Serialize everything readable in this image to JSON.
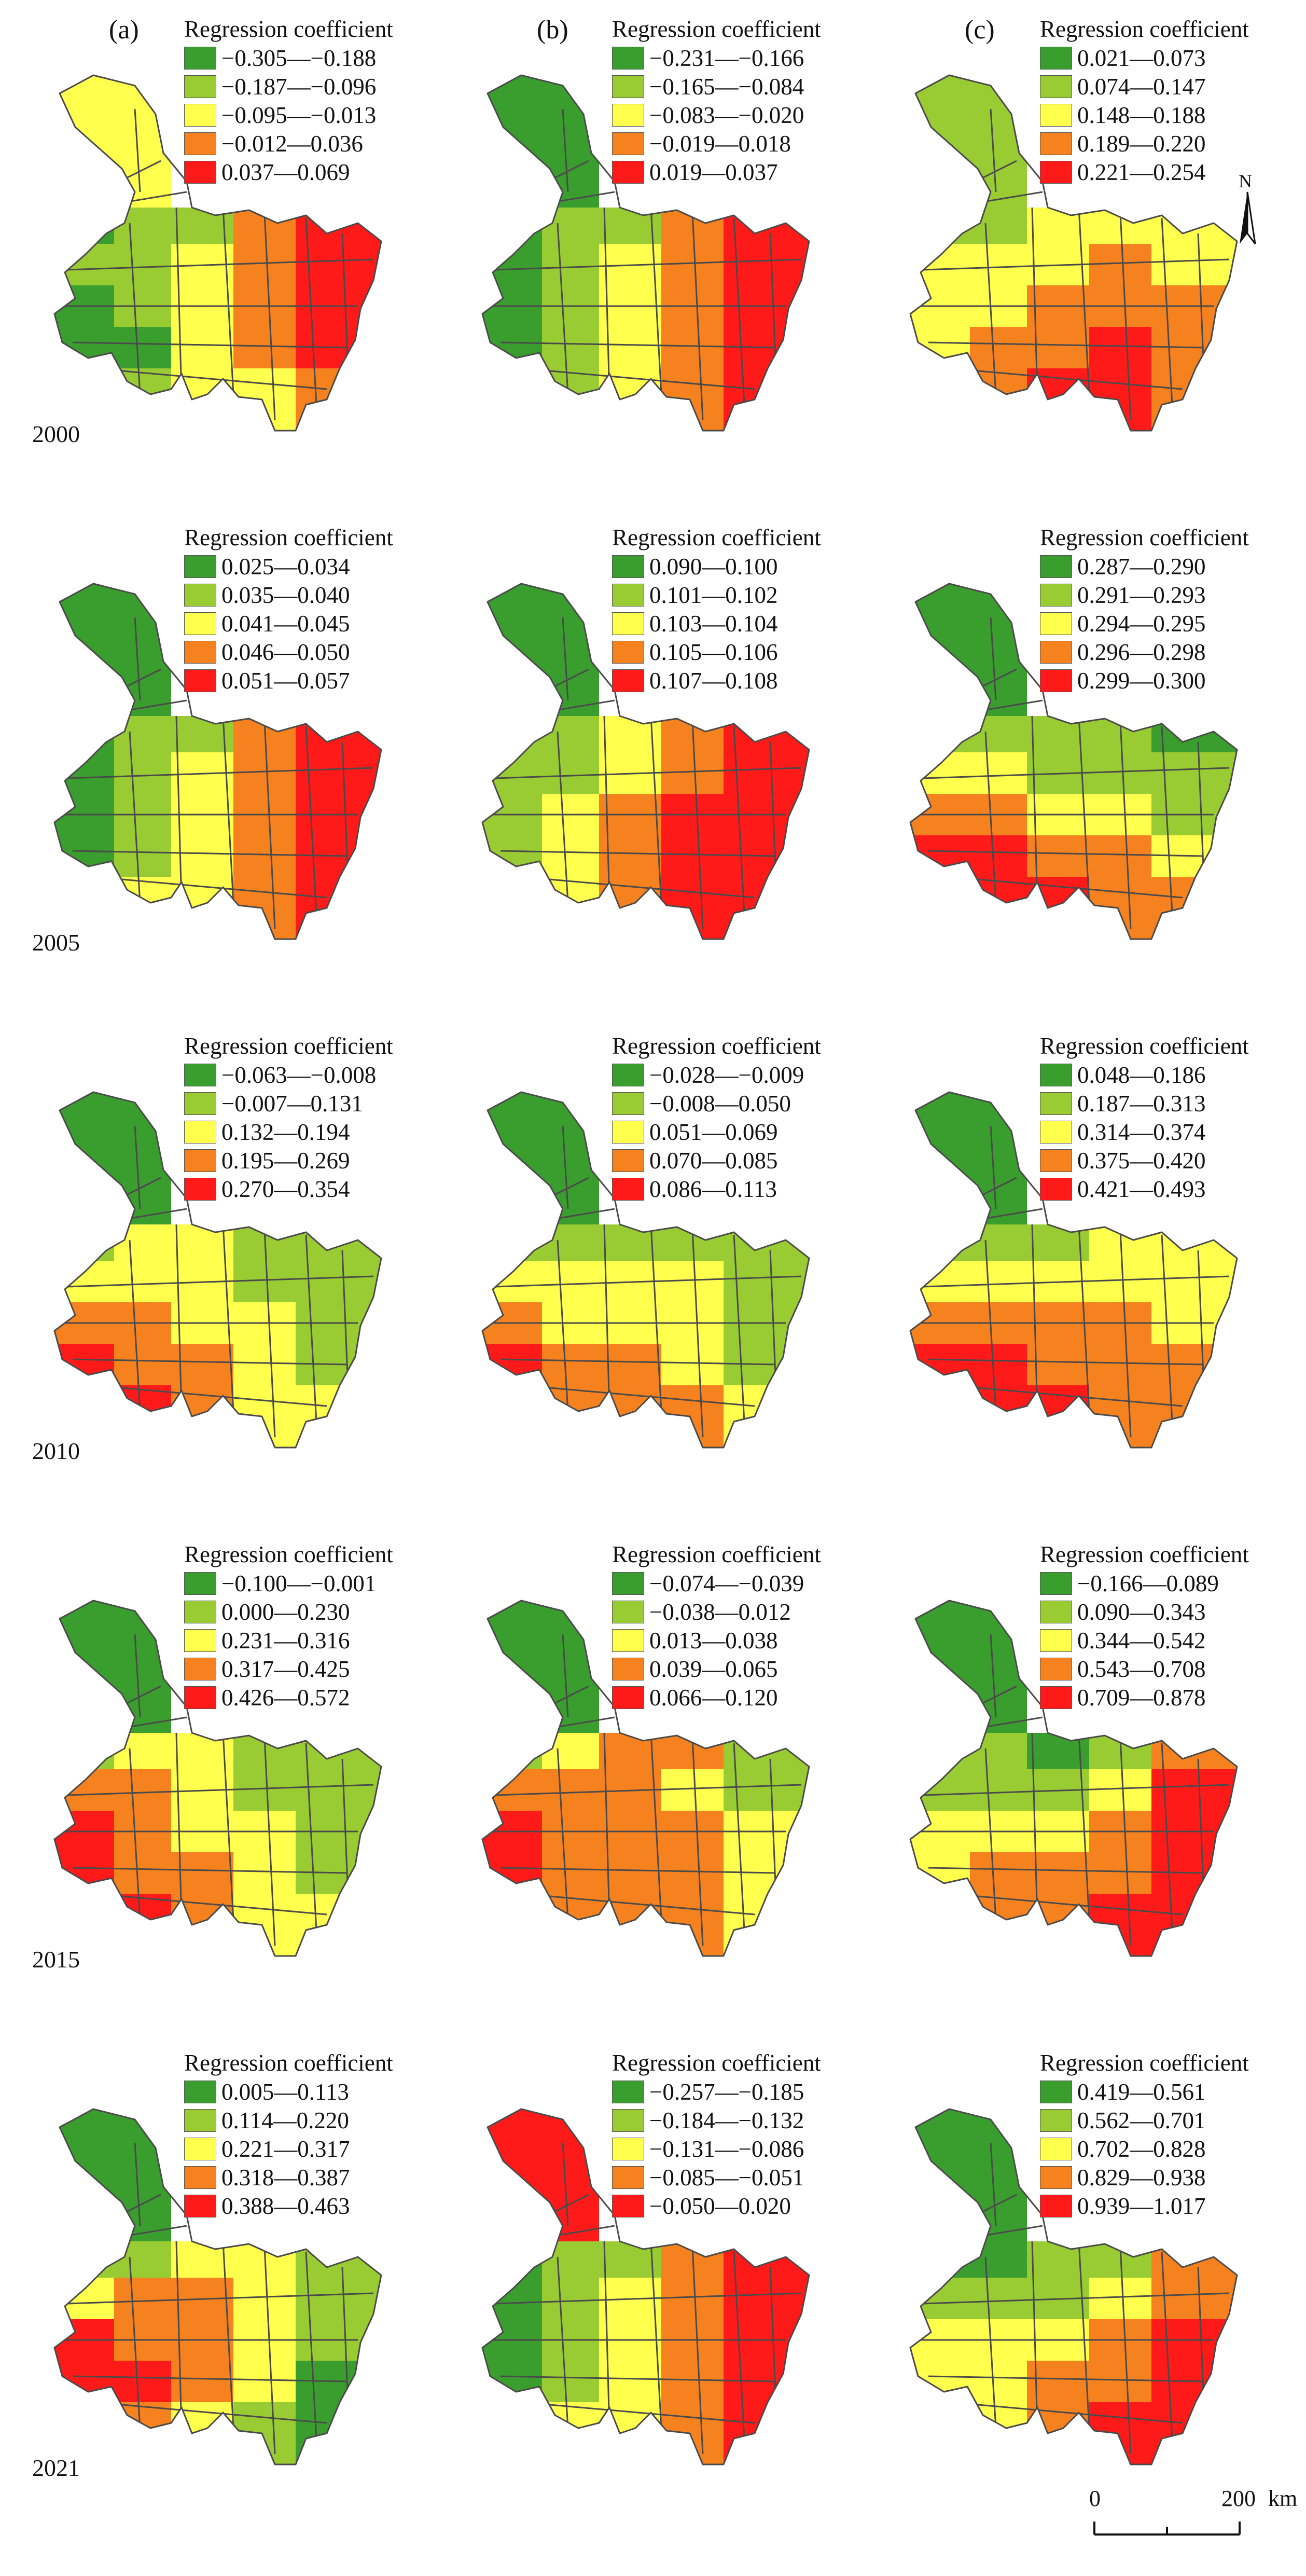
{
  "figure": {
    "column_labels": [
      "(a)",
      "(b)",
      "(c)"
    ],
    "years": [
      "2000",
      "2005",
      "2010",
      "2015",
      "2021"
    ],
    "legend_title": "Regression coefficient",
    "class_colors": [
      "#3a9e2f",
      "#99cc33",
      "#ffff4d",
      "#f5821f",
      "#ff1a1a"
    ],
    "north_arrow_label": "N",
    "scale_bar": {
      "start": "0",
      "end": "200",
      "unit": "km"
    }
  },
  "panels": [
    {
      "year": "2000",
      "column": "(a)",
      "legend": [
        "−0.305—−0.188",
        "−0.187—−0.096",
        "−0.095—−0.013",
        "−0.012—0.036",
        "0.037—0.069"
      ]
    },
    {
      "year": "2000",
      "column": "(b)",
      "legend": [
        "−0.231—−0.166",
        "−0.165—−0.084",
        "−0.083—−0.020",
        "−0.019—0.018",
        "0.019—0.037"
      ]
    },
    {
      "year": "2000",
      "column": "(c)",
      "legend": [
        "0.021—0.073",
        "0.074—0.147",
        "0.148—0.188",
        "0.189—0.220",
        "0.221—0.254"
      ]
    },
    {
      "year": "2005",
      "column": "(a)",
      "legend": [
        "0.025—0.034",
        "0.035—0.040",
        "0.041—0.045",
        "0.046—0.050",
        "0.051—0.057"
      ]
    },
    {
      "year": "2005",
      "column": "(b)",
      "legend": [
        "0.090—0.100",
        "0.101—0.102",
        "0.103—0.104",
        "0.105—0.106",
        "0.107—0.108"
      ]
    },
    {
      "year": "2005",
      "column": "(c)",
      "legend": [
        "0.287—0.290",
        "0.291—0.293",
        "0.294—0.295",
        "0.296—0.298",
        "0.299—0.300"
      ]
    },
    {
      "year": "2010",
      "column": "(a)",
      "legend": [
        "−0.063—−0.008",
        "−0.007—0.131",
        "0.132—0.194",
        "0.195—0.269",
        "0.270—0.354"
      ]
    },
    {
      "year": "2010",
      "column": "(b)",
      "legend": [
        "−0.028—−0.009",
        "−0.008—0.050",
        "0.051—0.069",
        "0.070—0.085",
        "0.086—0.113"
      ]
    },
    {
      "year": "2010",
      "column": "(c)",
      "legend": [
        "0.048—0.186",
        "0.187—0.313",
        "0.314—0.374",
        "0.375—0.420",
        "0.421—0.493"
      ]
    },
    {
      "year": "2015",
      "column": "(a)",
      "legend": [
        "−0.100—−0.001",
        "0.000—0.230",
        "0.231—0.316",
        "0.317—0.425",
        "0.426—0.572"
      ]
    },
    {
      "year": "2015",
      "column": "(b)",
      "legend": [
        "−0.074—−0.039",
        "−0.038—0.012",
        "0.013—0.038",
        "0.039—0.065",
        "0.066—0.120"
      ]
    },
    {
      "year": "2015",
      "column": "(c)",
      "legend": [
        "−0.166—0.089",
        "0.090—0.343",
        "0.344—0.542",
        "0.543—0.708",
        "0.709—0.878"
      ]
    },
    {
      "year": "2021",
      "column": "(a)",
      "legend": [
        "0.005—0.113",
        "0.114—0.220",
        "0.221—0.317",
        "0.318—0.387",
        "0.388—0.463"
      ]
    },
    {
      "year": "2021",
      "column": "(b)",
      "legend": [
        "−0.257—−0.185",
        "−0.184—−0.132",
        "−0.131—−0.086",
        "−0.085—−0.051",
        "−0.050—0.020"
      ]
    },
    {
      "year": "2021",
      "column": "(c)",
      "legend": [
        "0.419—0.561",
        "0.562—0.701",
        "0.702—0.828",
        "0.829—0.938",
        "0.939—1.017"
      ]
    }
  ]
}
